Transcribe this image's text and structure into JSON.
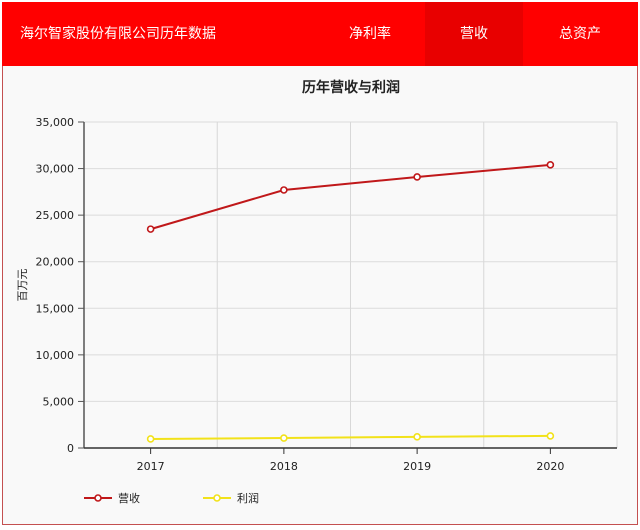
{
  "header": {
    "title": "海尔智家股份有限公司历年数据",
    "tabs": [
      {
        "label": "净利率",
        "active": false
      },
      {
        "label": "营收",
        "active": true
      },
      {
        "label": "总资产",
        "active": false
      }
    ]
  },
  "colors": {
    "header_bg": "#ff0000",
    "active_tab_bg": "#e80000",
    "revenue": "#c0181a",
    "profit": "#f2e21a"
  },
  "chart_data": {
    "type": "line",
    "title": "历年营收与利润",
    "xlabel": "",
    "ylabel": "百万元",
    "categories": [
      "2017",
      "2018",
      "2019",
      "2020"
    ],
    "series": [
      {
        "name": "营收",
        "values": [
          23500,
          27700,
          29100,
          30400
        ],
        "color": "#c0181a"
      },
      {
        "name": "利润",
        "values": [
          970,
          1070,
          1200,
          1300
        ],
        "color": "#f2e21a"
      }
    ],
    "ylim": [
      0,
      35000
    ],
    "yticks": [
      "0",
      "5,000",
      "10,000",
      "15,000",
      "20,000",
      "25,000",
      "30,000",
      "35,000"
    ],
    "grid": true,
    "legend_position": "bottom-left"
  }
}
